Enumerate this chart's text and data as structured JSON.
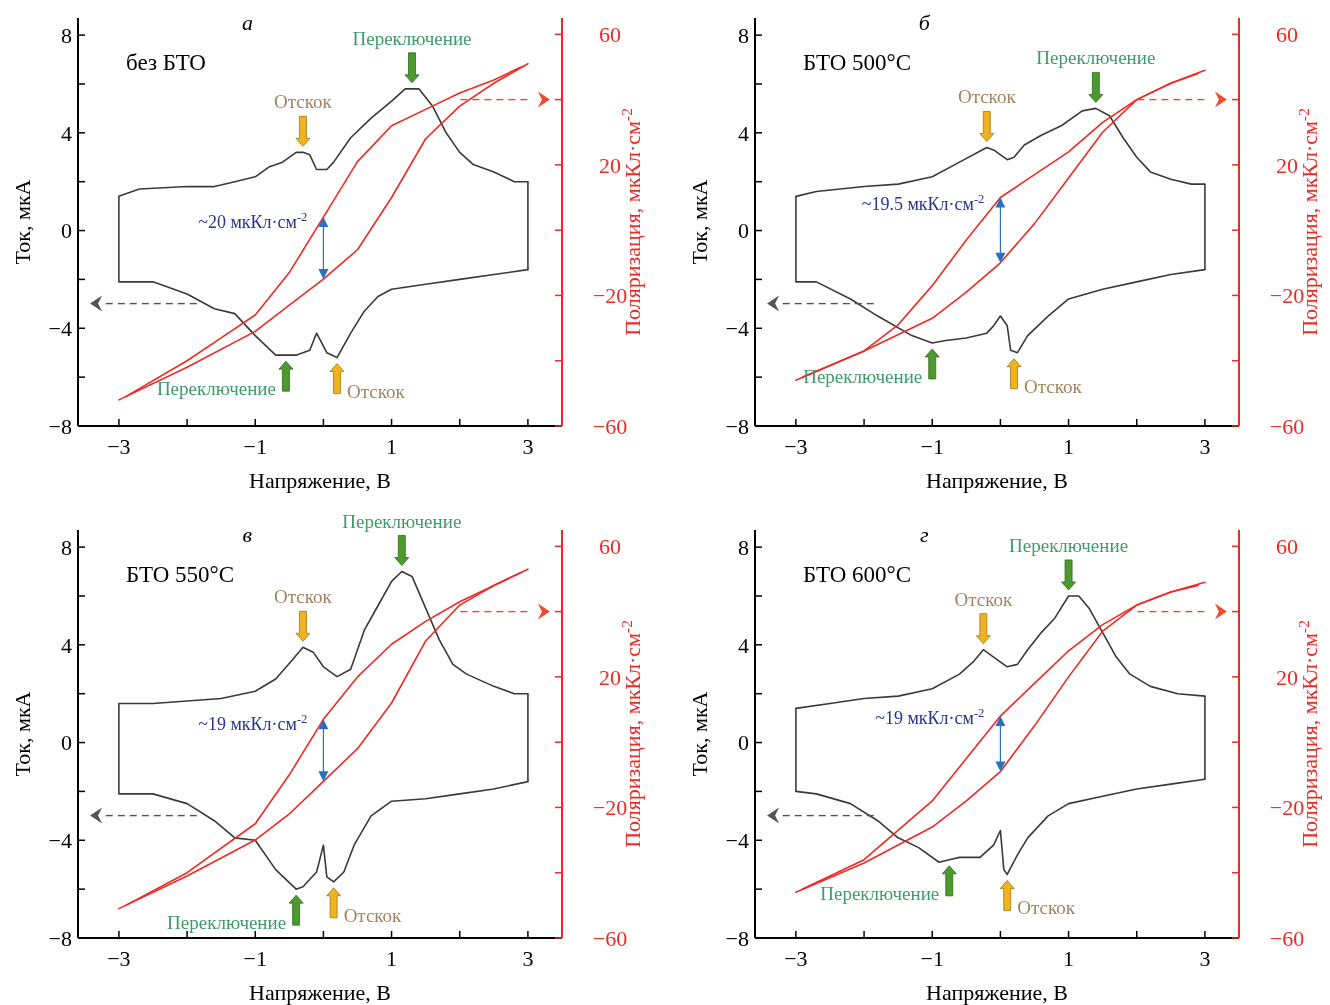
{
  "chart_data": [
    {
      "type": "line",
      "title": "а",
      "xlabel": "Напряжение, В",
      "ylabel": "Ток, мкА",
      "y2label": "Поляризация, мкКл·см$^{-2}$",
      "xlim": [
        -3.6,
        3.5
      ],
      "ylim": [
        -8,
        8.7
      ],
      "y2lim": [
        -60,
        65
      ],
      "xticks": [
        -3,
        {
          "value": -2,
          "label": null
        },
        -1,
        {
          "value": 0,
          "label": null
        },
        1,
        {
          "value": 2,
          "label": null
        },
        3
      ],
      "yticks": [
        -8,
        {
          "value": -6,
          "label": null
        },
        -4,
        {
          "value": -2,
          "label": null
        },
        0,
        {
          "value": 2,
          "label": null
        },
        4,
        {
          "value": 6,
          "label": null
        },
        8
      ],
      "y2ticks": [
        -60,
        {
          "value": -40,
          "label": null
        },
        -20,
        {
          "value": 0,
          "label": null
        },
        20,
        {
          "value": 40,
          "label": null
        },
        60
      ],
      "series": [
        {
          "color": "#3a3a3a",
          "x": [
            -3,
            -2.7,
            -2,
            -1.6,
            -1.3,
            -1,
            -0.8,
            -0.6,
            -0.4,
            -0.3,
            -0.2,
            -0.1,
            0.05,
            0.15,
            0.4,
            0.7,
            1.0,
            1.2,
            1.4,
            1.6,
            1.8,
            2.0,
            2.2,
            2.5,
            2.8,
            3
          ],
          "values": [
            1.4,
            1.7,
            1.8,
            1.8,
            2.0,
            2.2,
            2.6,
            2.8,
            3.2,
            3.2,
            3.1,
            2.5,
            2.5,
            2.8,
            3.8,
            4.6,
            5.3,
            5.8,
            5.8,
            5.1,
            4.0,
            3.2,
            2.7,
            2.4,
            2.0,
            2.0
          ]
        },
        {
          "color": "#3a3a3a",
          "x": [
            -3,
            -2.5,
            -2,
            -1.6,
            -1.3,
            -1.0,
            -0.7,
            -0.55,
            -0.4,
            -0.2,
            -0.1,
            0.05,
            0.2,
            0.4,
            0.6,
            0.8,
            1,
            1.5,
            2,
            2.5,
            3
          ],
          "values": [
            -2.1,
            -2.1,
            -2.6,
            -3.2,
            -3.4,
            -4.3,
            -5.1,
            -5.1,
            -5.1,
            -4.9,
            -4.2,
            -5.0,
            -5.2,
            -4.2,
            -3.3,
            -2.7,
            -2.4,
            -2.2,
            -2.0,
            -1.8,
            -1.6
          ]
        },
        {
          "color": "#ee2a24",
          "axis": "y2",
          "x": [
            -3,
            -2,
            -1,
            -0.5,
            0,
            0.5,
            1,
            1.5,
            2,
            2.5,
            3
          ],
          "values": [
            -52,
            -42,
            -31,
            -23,
            -15,
            -6,
            10,
            28,
            38,
            45,
            51
          ]
        },
        {
          "color": "#ee2a24",
          "axis": "y2",
          "x": [
            -2.9,
            -2,
            -1.5,
            -1,
            -0.5,
            0,
            0.5,
            1,
            1.5,
            2,
            2.5,
            2.9
          ],
          "values": [
            -51,
            -40,
            -33,
            -26,
            -13,
            4,
            21,
            32,
            37,
            42,
            46,
            50
          ]
        }
      ],
      "annotations": [
        "без БТО",
        "~20 мкКл·см$^{-2}$",
        {
          "text": "Отскок",
          "x": -0.3,
          "y": 3.2
        },
        {
          "text": "Переключение",
          "x": 1.3,
          "y": 5.8
        },
        {
          "text": "Переключение",
          "x": -0.55,
          "y": -5.1
        },
        {
          "text": "Отскок",
          "x": 0.2,
          "y": -5.2
        }
      ]
    },
    {
      "type": "line",
      "title": "б",
      "xlabel": "Напряжение, В",
      "ylabel": "Ток, мкА",
      "y2label": "Поляризация, мкКл·см$^{-2}$",
      "xlim": [
        -3.6,
        3.5
      ],
      "ylim": [
        -8,
        8.7
      ],
      "y2lim": [
        -60,
        65
      ],
      "xticks": [
        -3,
        {
          "value": -2,
          "label": null
        },
        -1,
        {
          "value": 0,
          "label": null
        },
        1,
        {
          "value": 2,
          "label": null
        },
        3
      ],
      "yticks": [
        -8,
        {
          "value": -6,
          "label": null
        },
        -4,
        {
          "value": -2,
          "label": null
        },
        0,
        {
          "value": 2,
          "label": null
        },
        4,
        {
          "value": 6,
          "label": null
        },
        8
      ],
      "y2ticks": [
        -60,
        {
          "value": -40,
          "label": null
        },
        -20,
        {
          "value": 0,
          "label": null
        },
        20,
        {
          "value": 40,
          "label": null
        },
        60
      ],
      "series": [
        {
          "color": "#3a3a3a",
          "x": [
            -3,
            -2.7,
            -2,
            -1.5,
            -1,
            -0.6,
            -0.2,
            -0.1,
            0.1,
            0.2,
            0.35,
            0.6,
            0.9,
            1.2,
            1.4,
            1.6,
            1.8,
            2.0,
            2.2,
            2.5,
            2.8,
            3
          ],
          "values": [
            1.4,
            1.6,
            1.8,
            1.9,
            2.2,
            2.8,
            3.4,
            3.3,
            2.9,
            3.0,
            3.5,
            3.9,
            4.3,
            4.9,
            5.0,
            4.7,
            3.8,
            3.0,
            2.4,
            2.1,
            1.9,
            1.9
          ]
        },
        {
          "color": "#3a3a3a",
          "x": [
            -3,
            -2.7,
            -2.2,
            -1.8,
            -1.3,
            -1.0,
            -0.8,
            -0.5,
            -0.2,
            -0.1,
            0,
            0.1,
            0.15,
            0.25,
            0.4,
            0.7,
            1,
            1.5,
            2,
            2.5,
            3
          ],
          "values": [
            -2.1,
            -2.1,
            -2.8,
            -3.5,
            -4.3,
            -4.6,
            -4.5,
            -4.4,
            -4.2,
            -3.9,
            -3.5,
            -3.9,
            -4.9,
            -5.0,
            -4.3,
            -3.5,
            -2.8,
            -2.4,
            -2.1,
            -1.8,
            -1.6
          ]
        },
        {
          "color": "#ee2a24",
          "axis": "y2",
          "x": [
            -3,
            -2,
            -1,
            -0.5,
            0,
            0.5,
            1,
            1.5,
            2,
            2.5,
            3
          ],
          "values": [
            -46,
            -37,
            -27,
            -19,
            -10,
            2,
            16,
            30,
            40,
            45,
            49
          ]
        },
        {
          "color": "#ee2a24",
          "axis": "y2",
          "x": [
            -2.9,
            -2,
            -1.5,
            -1,
            -0.5,
            0,
            0.5,
            1,
            1.5,
            2,
            2.5,
            2.9
          ],
          "values": [
            -45,
            -37,
            -29,
            -17,
            -3,
            10,
            17,
            24,
            33,
            40,
            45,
            48
          ]
        }
      ],
      "annotations": [
        "БТО 500°C",
        "~19.5 мкКл·см$^{-2}$",
        {
          "text": "Отскок",
          "x": -0.2,
          "y": 3.4
        },
        {
          "text": "Переключение",
          "x": 1.4,
          "y": 5.0
        },
        {
          "text": "Переключение",
          "x": -1.0,
          "y": -4.6
        },
        {
          "text": "Отскок",
          "x": 0.2,
          "y": -5.0
        }
      ]
    },
    {
      "type": "line",
      "title": "в",
      "xlabel": "Напряжение, В",
      "ylabel": "Ток, мкА",
      "y2label": "Поляризация, мкКл·см$^{-2}$",
      "xlim": [
        -3.6,
        3.5
      ],
      "ylim": [
        -8,
        8.7
      ],
      "y2lim": [
        -60,
        65
      ],
      "xticks": [
        -3,
        {
          "value": -2,
          "label": null
        },
        -1,
        {
          "value": 0,
          "label": null
        },
        1,
        {
          "value": 2,
          "label": null
        },
        3
      ],
      "yticks": [
        -8,
        {
          "value": -6,
          "label": null
        },
        -4,
        {
          "value": -2,
          "label": null
        },
        0,
        {
          "value": 2,
          "label": null
        },
        4,
        {
          "value": 6,
          "label": null
        },
        8
      ],
      "y2ticks": [
        -60,
        {
          "value": -40,
          "label": null
        },
        -20,
        {
          "value": 0,
          "label": null
        },
        20,
        {
          "value": 40,
          "label": null
        },
        60
      ],
      "series": [
        {
          "color": "#3a3a3a",
          "x": [
            -3,
            -2.5,
            -2,
            -1.5,
            -1,
            -0.7,
            -0.45,
            -0.3,
            -0.15,
            0,
            0.2,
            0.4,
            0.6,
            0.8,
            1.0,
            1.15,
            1.3,
            1.5,
            1.7,
            1.9,
            2.1,
            2.5,
            2.8,
            3
          ],
          "values": [
            1.6,
            1.6,
            1.7,
            1.8,
            2.1,
            2.6,
            3.4,
            3.9,
            3.7,
            3.1,
            2.7,
            3.0,
            4.6,
            5.6,
            6.6,
            7.0,
            6.8,
            5.5,
            4.2,
            3.2,
            2.8,
            2.3,
            2.0,
            2.0
          ]
        },
        {
          "color": "#3a3a3a",
          "x": [
            -3,
            -2.5,
            -2,
            -1.6,
            -1.3,
            -1,
            -0.7,
            -0.4,
            -0.3,
            -0.1,
            0,
            0.05,
            0.15,
            0.3,
            0.45,
            0.7,
            1,
            1.5,
            2,
            2.5,
            3
          ],
          "values": [
            -2.1,
            -2.1,
            -2.5,
            -3.2,
            -3.9,
            -4.0,
            -5.2,
            -6.0,
            -5.9,
            -5.3,
            -4.2,
            -5.5,
            -5.7,
            -5.3,
            -4.2,
            -3.0,
            -2.4,
            -2.3,
            -2.1,
            -1.9,
            -1.6
          ]
        },
        {
          "color": "#ee2a24",
          "axis": "y2",
          "x": [
            -3,
            -2,
            -1,
            -0.5,
            0,
            0.5,
            1,
            1.5,
            2,
            2.5,
            3
          ],
          "values": [
            -51,
            -41,
            -30,
            -22,
            -12,
            -2,
            12,
            31,
            42,
            48,
            53
          ]
        },
        {
          "color": "#ee2a24",
          "axis": "y2",
          "x": [
            -2.9,
            -2,
            -1,
            -0.5,
            0,
            0.5,
            1,
            1.5,
            2,
            2.5,
            2.9
          ],
          "values": [
            -50,
            -40,
            -25,
            -10,
            7,
            20,
            30,
            37,
            43,
            48,
            52
          ]
        }
      ],
      "annotations": [
        "БТО 550°C",
        "~19 мкКл·см$^{-2}$",
        {
          "text": "Отскок",
          "x": -0.3,
          "y": 3.9
        },
        {
          "text": "Переключение",
          "x": 1.15,
          "y": 7.0
        },
        {
          "text": "Переключение",
          "x": -0.4,
          "y": -6.0
        },
        {
          "text": "Отскок",
          "x": 0.15,
          "y": -5.7
        }
      ]
    },
    {
      "type": "line",
      "title": "г",
      "xlabel": "Напряжение, В",
      "ylabel": "Ток, мкА",
      "y2label": "Поляризация, мкКл·см$^{-2}$",
      "xlim": [
        -3.6,
        3.5
      ],
      "ylim": [
        -8,
        8.7
      ],
      "y2lim": [
        -60,
        65
      ],
      "xticks": [
        -3,
        {
          "value": -2,
          "label": null
        },
        -1,
        {
          "value": 0,
          "label": null
        },
        1,
        {
          "value": 2,
          "label": null
        },
        3
      ],
      "yticks": [
        -8,
        {
          "value": -6,
          "label": null
        },
        -4,
        {
          "value": -2,
          "label": null
        },
        0,
        {
          "value": 2,
          "label": null
        },
        4,
        {
          "value": 6,
          "label": null
        },
        8
      ],
      "y2ticks": [
        -60,
        {
          "value": -40,
          "label": null
        },
        -20,
        {
          "value": 0,
          "label": null
        },
        20,
        {
          "value": 40,
          "label": null
        },
        60
      ],
      "series": [
        {
          "color": "#3a3a3a",
          "x": [
            -3,
            -2.5,
            -2,
            -1.5,
            -1,
            -0.6,
            -0.4,
            -0.25,
            -0.1,
            0.1,
            0.25,
            0.4,
            0.6,
            0.8,
            1.0,
            1.15,
            1.3,
            1.5,
            1.7,
            1.9,
            2.2,
            2.6,
            3
          ],
          "values": [
            1.4,
            1.6,
            1.8,
            1.9,
            2.2,
            2.8,
            3.3,
            3.8,
            3.5,
            3.1,
            3.2,
            3.8,
            4.5,
            5.1,
            6.0,
            6.0,
            5.5,
            4.5,
            3.5,
            2.8,
            2.3,
            2.0,
            1.9
          ]
        },
        {
          "color": "#3a3a3a",
          "x": [
            -3,
            -2.7,
            -2.2,
            -1.8,
            -1.5,
            -1.2,
            -0.9,
            -0.75,
            -0.6,
            -0.3,
            -0.1,
            0,
            0.05,
            0.1,
            0.25,
            0.4,
            0.7,
            1,
            1.5,
            2,
            2.5,
            3
          ],
          "values": [
            -2.0,
            -2.1,
            -2.5,
            -3.2,
            -3.9,
            -4.3,
            -4.9,
            -4.8,
            -4.7,
            -4.7,
            -4.2,
            -3.6,
            -5.2,
            -5.4,
            -4.6,
            -3.9,
            -3.0,
            -2.5,
            -2.2,
            -1.9,
            -1.7,
            -1.5
          ]
        },
        {
          "color": "#ee2a24",
          "axis": "y2",
          "x": [
            -3,
            -2,
            -1,
            -0.5,
            0,
            0.5,
            1,
            1.5,
            2,
            2.5,
            3
          ],
          "values": [
            -46,
            -37,
            -26,
            -18,
            -9,
            5,
            20,
            34,
            42,
            46,
            49
          ]
        },
        {
          "color": "#ee2a24",
          "axis": "y2",
          "x": [
            -2.9,
            -2,
            -1,
            -0.5,
            0,
            0.5,
            1,
            1.5,
            2,
            2.5,
            2.9
          ],
          "values": [
            -45,
            -36,
            -18,
            -5,
            8,
            18,
            28,
            36,
            42,
            46,
            48
          ]
        }
      ],
      "annotations": [
        "БТО 600°C",
        "~19 мкКл·см$^{-2}$",
        {
          "text": "Отскок",
          "x": -0.25,
          "y": 3.8
        },
        {
          "text": "Переключение",
          "x": 1.0,
          "y": 6.0
        },
        {
          "text": "Переключение",
          "x": -0.75,
          "y": -4.8
        },
        {
          "text": "Отскок",
          "x": 0.1,
          "y": -5.4
        }
      ]
    }
  ]
}
